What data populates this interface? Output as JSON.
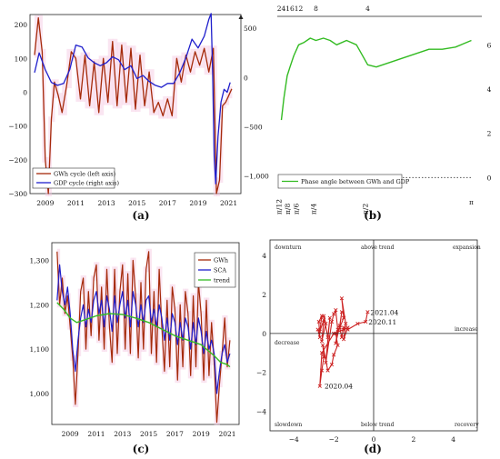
{
  "chart_data": [
    {
      "id": "a",
      "panel_label": "(a)",
      "type": "line",
      "x_ticks": [
        "2009",
        "2011",
        "2013",
        "2015",
        "2017",
        "2019",
        "2021"
      ],
      "xlim": [
        2008.0,
        2021.8
      ],
      "left_axis": {
        "ticks": [
          "200",
          "100",
          "0",
          "−100",
          "−200",
          "−300"
        ],
        "ylim": [
          -300,
          230
        ]
      },
      "right_axis": {
        "ticks": [
          "500",
          "0",
          "−500",
          "−1,000"
        ],
        "ylim": [
          -1180,
          640
        ]
      },
      "series": [
        {
          "name": "GWh cycle (left axis)",
          "axis": "left",
          "color": "#a52a0a",
          "x": [
            2008.3,
            2008.55,
            2008.8,
            2009.0,
            2009.2,
            2009.4,
            2009.6,
            2009.85,
            2010.1,
            2010.4,
            2010.7,
            2011.0,
            2011.3,
            2011.6,
            2011.9,
            2012.2,
            2012.5,
            2012.8,
            2013.1,
            2013.4,
            2013.7,
            2014.0,
            2014.3,
            2014.6,
            2014.9,
            2015.2,
            2015.5,
            2015.8,
            2016.1,
            2016.4,
            2016.7,
            2017.0,
            2017.3,
            2017.6,
            2017.9,
            2018.2,
            2018.5,
            2018.8,
            2019.1,
            2019.4,
            2019.7,
            2020.0,
            2020.2,
            2020.4,
            2020.6,
            2020.8,
            2021.0,
            2021.2
          ],
          "y": [
            110,
            220,
            120,
            -200,
            -300,
            -80,
            30,
            -10,
            -60,
            20,
            120,
            100,
            -20,
            110,
            -40,
            90,
            -60,
            100,
            -30,
            150,
            -40,
            140,
            -30,
            130,
            -50,
            110,
            -40,
            60,
            -60,
            -30,
            -70,
            -20,
            -70,
            100,
            30,
            110,
            60,
            120,
            80,
            130,
            60,
            130,
            -300,
            -260,
            -40,
            -30,
            -10,
            10
          ]
        },
        {
          "name": "GDP cycle (right axis)",
          "axis": "right",
          "color": "#1f1fcc",
          "x": [
            2008.3,
            2008.6,
            2009.0,
            2009.4,
            2009.8,
            2010.2,
            2010.6,
            2011.0,
            2011.4,
            2011.8,
            2012.2,
            2012.6,
            2013.0,
            2013.4,
            2013.8,
            2014.2,
            2014.6,
            2015.0,
            2015.4,
            2015.8,
            2016.2,
            2016.6,
            2017.0,
            2017.4,
            2017.8,
            2018.2,
            2018.6,
            2019.0,
            2019.4,
            2019.7,
            2019.85,
            2019.95,
            2020.05,
            2020.15,
            2020.3,
            2020.5,
            2020.7,
            2020.9,
            2021.1
          ],
          "y": [
            50,
            250,
            80,
            -50,
            -80,
            -60,
            80,
            330,
            310,
            200,
            150,
            120,
            150,
            210,
            180,
            80,
            120,
            -10,
            20,
            -40,
            -80,
            -100,
            -60,
            -60,
            50,
            200,
            390,
            300,
            420,
            590,
            650,
            50,
            -800,
            -1080,
            -600,
            -250,
            -120,
            -150,
            -50
          ]
        }
      ]
    },
    {
      "id": "b",
      "panel_label": "(b)",
      "type": "line",
      "top_ticks": [
        "24",
        "16",
        "12",
        "8",
        "4"
      ],
      "bottom_ticks": [
        "π/12",
        "π/8",
        "π/6",
        "π/4",
        "π/2",
        "π"
      ],
      "xlim": [
        0.2,
        3.3
      ],
      "ylim": [
        -0.6,
        7.0
      ],
      "right_ticks": [
        "6",
        "4",
        "2",
        "0"
      ],
      "series": [
        {
          "name": "Phase angle between GWh and GDP",
          "color": "#33bb22",
          "x": [
            0.2618,
            0.3,
            0.35,
            0.3927,
            0.45,
            0.5236,
            0.6,
            0.7,
            0.7854,
            0.9,
            1.0,
            1.1,
            1.25,
            1.4,
            1.5708,
            1.7,
            1.9,
            2.1,
            2.3,
            2.5,
            2.7,
            2.9,
            3.1416
          ],
          "y": [
            2.6,
            3.6,
            4.6,
            5.0,
            5.5,
            6.0,
            6.1,
            6.3,
            6.2,
            6.3,
            6.2,
            6.0,
            6.2,
            6.0,
            5.1,
            5.0,
            5.2,
            5.4,
            5.6,
            5.8,
            5.8,
            5.9,
            6.2
          ]
        },
        {
          "name": "",
          "style": "dotted",
          "color": "#555555",
          "x": [
            1.5708,
            3.1416
          ],
          "y": [
            0,
            0
          ]
        }
      ]
    },
    {
      "id": "c",
      "panel_label": "(c)",
      "type": "line",
      "x_ticks": [
        "2009",
        "2011",
        "2013",
        "2015",
        "2017",
        "2019",
        "2021"
      ],
      "xlim": [
        2007.6,
        2021.9
      ],
      "y_ticks": [
        "1,300",
        "1,200",
        "1,100",
        "1,000"
      ],
      "ylim": [
        930,
        1340
      ],
      "series": [
        {
          "name": "GWh",
          "color": "#a52a0a",
          "x": [
            2008.0,
            2008.2,
            2008.4,
            2008.6,
            2008.8,
            2009.0,
            2009.2,
            2009.4,
            2009.6,
            2009.8,
            2010.0,
            2010.2,
            2010.4,
            2010.6,
            2010.8,
            2011.0,
            2011.2,
            2011.4,
            2011.6,
            2011.8,
            2012.0,
            2012.2,
            2012.4,
            2012.6,
            2012.8,
            2013.0,
            2013.2,
            2013.4,
            2013.6,
            2013.8,
            2014.0,
            2014.2,
            2014.4,
            2014.6,
            2014.8,
            2015.0,
            2015.2,
            2015.4,
            2015.6,
            2015.8,
            2016.0,
            2016.2,
            2016.4,
            2016.6,
            2016.8,
            2017.0,
            2017.2,
            2017.4,
            2017.6,
            2017.8,
            2018.0,
            2018.2,
            2018.4,
            2018.6,
            2018.8,
            2019.0,
            2019.2,
            2019.4,
            2019.6,
            2019.8,
            2020.0,
            2020.2,
            2020.4,
            2020.6,
            2020.8,
            2021.0,
            2021.2
          ],
          "y": [
            1320,
            1200,
            1260,
            1180,
            1220,
            1150,
            1080,
            975,
            1090,
            1230,
            1260,
            1100,
            1230,
            1130,
            1260,
            1290,
            1120,
            1240,
            1100,
            1280,
            1150,
            1070,
            1280,
            1090,
            1230,
            1290,
            1100,
            1270,
            1090,
            1300,
            1220,
            1080,
            1250,
            1100,
            1280,
            1320,
            1090,
            1230,
            1070,
            1280,
            1150,
            1050,
            1210,
            1060,
            1240,
            1190,
            1030,
            1200,
            1060,
            1230,
            1180,
            1040,
            1220,
            1060,
            1250,
            1180,
            1030,
            1210,
            1040,
            1160,
            1070,
            935,
            1020,
            1090,
            1170,
            1060,
            1120
          ]
        },
        {
          "name": "SCA",
          "color": "#1f1fcc",
          "x": [
            2008.0,
            2008.2,
            2008.4,
            2008.6,
            2008.8,
            2009.0,
            2009.2,
            2009.4,
            2009.6,
            2009.8,
            2010.0,
            2010.2,
            2010.4,
            2010.6,
            2010.8,
            2011.0,
            2011.2,
            2011.4,
            2011.6,
            2011.8,
            2012.0,
            2012.2,
            2012.4,
            2012.6,
            2012.8,
            2013.0,
            2013.2,
            2013.4,
            2013.6,
            2013.8,
            2014.0,
            2014.2,
            2014.4,
            2014.6,
            2014.8,
            2015.0,
            2015.2,
            2015.4,
            2015.6,
            2015.8,
            2016.0,
            2016.2,
            2016.4,
            2016.6,
            2016.8,
            2017.0,
            2017.2,
            2017.4,
            2017.6,
            2017.8,
            2018.0,
            2018.2,
            2018.4,
            2018.6,
            2018.8,
            2019.0,
            2019.2,
            2019.4,
            2019.6,
            2019.8,
            2020.0,
            2020.2,
            2020.4,
            2020.6,
            2020.8,
            2021.0,
            2021.2
          ],
          "y": [
            1210,
            1290,
            1230,
            1200,
            1240,
            1180,
            1100,
            1050,
            1120,
            1170,
            1200,
            1150,
            1190,
            1160,
            1210,
            1230,
            1180,
            1210,
            1150,
            1220,
            1190,
            1140,
            1220,
            1160,
            1200,
            1230,
            1170,
            1210,
            1150,
            1230,
            1200,
            1150,
            1200,
            1160,
            1210,
            1220,
            1160,
            1190,
            1150,
            1200,
            1170,
            1120,
            1170,
            1120,
            1180,
            1160,
            1110,
            1160,
            1120,
            1170,
            1150,
            1100,
            1160,
            1110,
            1170,
            1140,
            1090,
            1140,
            1100,
            1120,
            1090,
            1000,
            1050,
            1090,
            1110,
            1070,
            1090
          ]
        },
        {
          "name": "trend",
          "color": "#33bb22",
          "x": [
            2008.0,
            2008.5,
            2009.0,
            2009.5,
            2010.0,
            2011.0,
            2012.0,
            2013.0,
            2014.0,
            2015.0,
            2016.0,
            2017.0,
            2018.0,
            2019.0,
            2020.0,
            2020.5,
            2021.0,
            2021.2
          ],
          "y": [
            1205,
            1190,
            1170,
            1160,
            1165,
            1175,
            1180,
            1178,
            1170,
            1160,
            1145,
            1130,
            1120,
            1110,
            1085,
            1070,
            1065,
            1060
          ]
        }
      ]
    },
    {
      "id": "d",
      "panel_label": "(d)",
      "type": "scatter",
      "xlim": [
        -5.2,
        5.2
      ],
      "ylim": [
        -5.0,
        4.8
      ],
      "x_ticks": [
        -4,
        -2,
        0,
        2,
        4
      ],
      "y_ticks": [
        4,
        2,
        0,
        -2,
        -4
      ],
      "corner_labels": {
        "top_left": "downturn",
        "top_center": "above trend",
        "top_right": "expansion",
        "right_upper": "increase",
        "left_mid": "decrease",
        "bottom_left": "slowdown",
        "bottom_center": "below trend",
        "bottom_right": "recovery"
      },
      "annotations": [
        {
          "text": "2021.04",
          "x": -0.3,
          "y": 1.1
        },
        {
          "text": "2020.11",
          "x": -0.4,
          "y": 0.6
        },
        {
          "text": "2020.04",
          "x": -2.6,
          "y": -2.7
        }
      ],
      "series": [
        {
          "name": "",
          "color": "#cc2222",
          "x": [
            -2.8,
            -2.7,
            -2.75,
            -2.6,
            -2.7,
            -2.5,
            -2.6,
            -2.4,
            -2.5,
            -2.3,
            -2.2,
            -2.4,
            -2.1,
            -2.0,
            -1.9,
            -1.8,
            -1.9,
            -1.7,
            -1.6,
            -1.7,
            -1.5,
            -1.6,
            -1.4,
            -1.5,
            -1.3,
            -1.5,
            -2.0,
            -2.6,
            -2.7,
            -2.6,
            -2.5,
            -2.55,
            -2.3,
            -2.1,
            -2.0,
            -1.8,
            -1.9,
            -1.7,
            -1.6,
            -1.5,
            -1.3,
            -0.8,
            -0.4,
            -0.3
          ],
          "y": [
            0.2,
            -0.2,
            0.6,
            0.9,
            0.1,
            0.7,
            -0.4,
            0.5,
            0.9,
            -0.2,
            0.8,
            -1.5,
            0.6,
            1.0,
            1.2,
            0.2,
            -0.5,
            0.4,
            1.1,
            0.3,
            0.8,
            1.8,
            0.5,
            -0.3,
            0.3,
            0.2,
            0.0,
            -1.0,
            -2.7,
            -1.9,
            -1.2,
            -0.6,
            -1.9,
            -1.6,
            -1.1,
            -0.6,
            0.0,
            0.3,
            -0.2,
            0.3,
            0.2,
            0.5,
            0.6,
            1.1
          ]
        }
      ]
    }
  ]
}
